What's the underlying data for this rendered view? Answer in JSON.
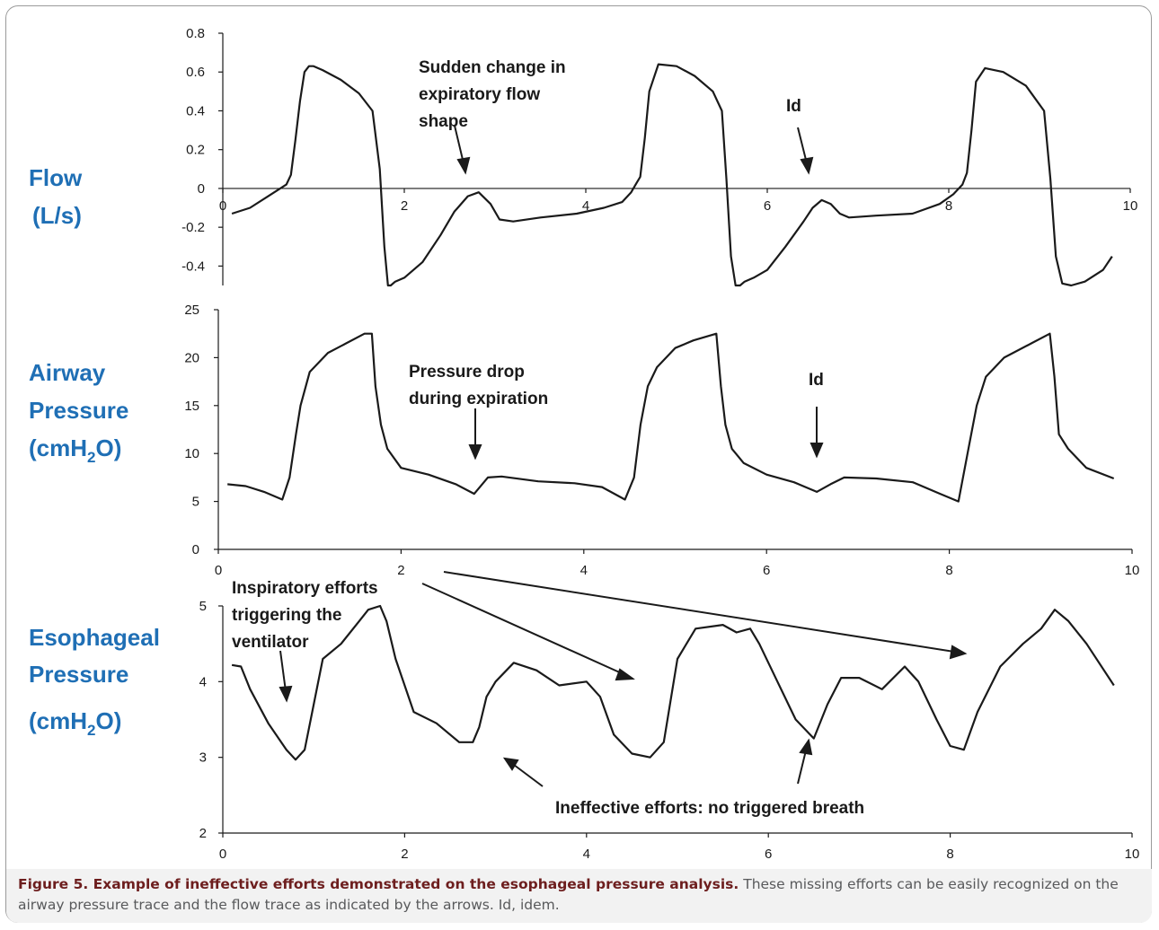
{
  "figure": {
    "caption_title": "Figure 5. Example of ineffective efforts demonstrated on the esophageal pressure analysis.",
    "caption_text": "These missing efforts can be easily recognized on the airway pressure trace and the flow trace as indicated by the arrows. Id, idem."
  },
  "panel_labels": {
    "flow": [
      "Flow",
      "(L/s)"
    ],
    "airway": [
      "Airway",
      "Pressure",
      "(cmH",
      "2",
      "O)"
    ],
    "esophageal": [
      "Esophageal",
      "Pressure",
      "(cmH",
      "2",
      "O)"
    ]
  },
  "annotations": {
    "flow_change": [
      "Sudden change in",
      "expiratory flow",
      "shape"
    ],
    "flow_id": "Id",
    "paw_drop": [
      "Pressure drop",
      "during expiration"
    ],
    "paw_id": "Id",
    "pes_insp": [
      "Inspiratory efforts",
      "triggering the",
      "ventilator"
    ],
    "pes_ineff": "Ineffective efforts: no triggered breath"
  },
  "chart_data": [
    {
      "type": "line",
      "name": "flow",
      "xlim": [
        0,
        10
      ],
      "ylim": [
        -0.5,
        0.8
      ],
      "yticks": [
        "-0.4",
        "-0.2",
        "0",
        "0.2",
        "0.4",
        "0.6",
        "0.8"
      ],
      "xticks": [
        "0",
        "2",
        "4",
        "6",
        "8",
        "10"
      ],
      "x": [
        0.1,
        0.3,
        0.5,
        0.7,
        0.75,
        0.8,
        0.85,
        0.9,
        0.95,
        1.0,
        1.1,
        1.3,
        1.5,
        1.65,
        1.73,
        1.78,
        1.82,
        1.85,
        1.9,
        2.0,
        2.2,
        2.4,
        2.55,
        2.7,
        2.82,
        2.95,
        3.05,
        3.2,
        3.5,
        3.9,
        4.2,
        4.4,
        4.5,
        4.55,
        4.6,
        4.65,
        4.7,
        4.8,
        5.0,
        5.2,
        5.4,
        5.5,
        5.55,
        5.6,
        5.65,
        5.7,
        5.75,
        5.85,
        6.0,
        6.2,
        6.4,
        6.5,
        6.6,
        6.7,
        6.8,
        6.9,
        7.2,
        7.6,
        7.9,
        8.05,
        8.15,
        8.2,
        8.25,
        8.3,
        8.4,
        8.6,
        8.85,
        9.05,
        9.12,
        9.18,
        9.25,
        9.35,
        9.5,
        9.7,
        9.8
      ],
      "y": [
        -0.13,
        -0.1,
        -0.04,
        0.02,
        0.07,
        0.25,
        0.45,
        0.6,
        0.63,
        0.63,
        0.61,
        0.56,
        0.49,
        0.4,
        0.1,
        -0.3,
        -0.5,
        -0.5,
        -0.48,
        -0.46,
        -0.38,
        -0.24,
        -0.12,
        -0.04,
        -0.02,
        -0.08,
        -0.16,
        -0.17,
        -0.15,
        -0.13,
        -0.1,
        -0.07,
        -0.02,
        0.02,
        0.06,
        0.26,
        0.5,
        0.64,
        0.63,
        0.58,
        0.5,
        0.4,
        0.05,
        -0.35,
        -0.5,
        -0.5,
        -0.48,
        -0.46,
        -0.42,
        -0.3,
        -0.17,
        -0.1,
        -0.06,
        -0.08,
        -0.13,
        -0.15,
        -0.14,
        -0.13,
        -0.08,
        -0.03,
        0.02,
        0.08,
        0.3,
        0.55,
        0.62,
        0.6,
        0.53,
        0.4,
        0.05,
        -0.35,
        -0.49,
        -0.5,
        -0.48,
        -0.42,
        -0.35
      ]
    },
    {
      "type": "line",
      "name": "airway pressure",
      "xlim": [
        0,
        10
      ],
      "ylim": [
        0,
        25
      ],
      "yticks": [
        "0",
        "5",
        "10",
        "15",
        "20",
        "25"
      ],
      "xticks": [
        "0",
        "2",
        "4",
        "6",
        "8",
        "10"
      ],
      "x": [
        0.1,
        0.3,
        0.5,
        0.7,
        0.78,
        0.85,
        0.9,
        1.0,
        1.2,
        1.4,
        1.6,
        1.68,
        1.72,
        1.78,
        1.85,
        2.0,
        2.3,
        2.6,
        2.8,
        2.95,
        3.1,
        3.5,
        3.9,
        4.2,
        4.45,
        4.55,
        4.62,
        4.7,
        4.8,
        5.0,
        5.2,
        5.45,
        5.5,
        5.55,
        5.62,
        5.75,
        6.0,
        6.3,
        6.55,
        6.7,
        6.85,
        7.2,
        7.6,
        7.9,
        8.1,
        8.2,
        8.3,
        8.4,
        8.6,
        8.9,
        9.1,
        9.15,
        9.2,
        9.3,
        9.5,
        9.8
      ],
      "y": [
        6.8,
        6.6,
        6.0,
        5.2,
        7.5,
        12,
        15,
        18.5,
        20.5,
        21.5,
        22.5,
        22.5,
        17,
        13,
        10.5,
        8.5,
        7.8,
        6.8,
        5.8,
        7.5,
        7.6,
        7.1,
        6.9,
        6.5,
        5.2,
        7.5,
        13,
        17,
        19,
        21,
        21.8,
        22.5,
        17,
        13,
        10.5,
        9,
        7.8,
        7.0,
        6.0,
        6.8,
        7.5,
        7.4,
        7.0,
        5.8,
        5.0,
        10,
        15,
        18,
        20,
        21.5,
        22.5,
        18,
        12,
        10.5,
        8.5,
        7.4
      ]
    },
    {
      "type": "line",
      "name": "esophageal pressure",
      "xlim": [
        0,
        10
      ],
      "ylim": [
        2,
        5
      ],
      "yticks": [
        "2",
        "3",
        "4",
        "5"
      ],
      "xticks": [
        "0",
        "2",
        "4",
        "6",
        "8",
        "10"
      ],
      "x": [
        0.1,
        0.2,
        0.3,
        0.5,
        0.7,
        0.8,
        0.9,
        1.0,
        1.1,
        1.3,
        1.5,
        1.6,
        1.73,
        1.8,
        1.9,
        2.1,
        2.35,
        2.6,
        2.75,
        2.82,
        2.9,
        3.0,
        3.2,
        3.45,
        3.7,
        4.0,
        4.15,
        4.3,
        4.5,
        4.7,
        4.85,
        5.0,
        5.2,
        5.5,
        5.65,
        5.8,
        5.9,
        6.1,
        6.3,
        6.5,
        6.65,
        6.8,
        7.0,
        7.25,
        7.5,
        7.65,
        7.85,
        8.0,
        8.15,
        8.3,
        8.55,
        8.8,
        9.0,
        9.15,
        9.3,
        9.5,
        9.8
      ],
      "y": [
        4.22,
        4.2,
        3.9,
        3.45,
        3.1,
        2.97,
        3.1,
        3.7,
        4.3,
        4.5,
        4.8,
        4.95,
        5.0,
        4.8,
        4.3,
        3.6,
        3.45,
        3.2,
        3.2,
        3.4,
        3.8,
        4.0,
        4.25,
        4.15,
        3.95,
        4.0,
        3.8,
        3.3,
        3.05,
        3.0,
        3.2,
        4.3,
        4.7,
        4.75,
        4.65,
        4.7,
        4.5,
        4.0,
        3.5,
        3.25,
        3.7,
        4.05,
        4.05,
        3.9,
        4.2,
        4.0,
        3.5,
        3.15,
        3.1,
        3.6,
        4.2,
        4.5,
        4.7,
        4.95,
        4.8,
        4.5,
        3.95
      ]
    }
  ]
}
